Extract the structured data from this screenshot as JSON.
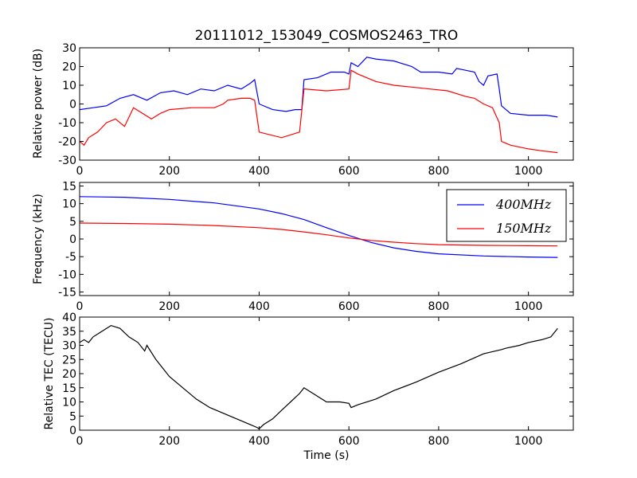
{
  "title": "20111012_153049_COSMOS2463_TRO",
  "chart_data": [
    {
      "type": "line",
      "ylabel": "Relative power (dB)",
      "xlabel": "",
      "xlim": [
        0,
        1100
      ],
      "ylim": [
        -30,
        30
      ],
      "xticks": [
        0,
        200,
        400,
        600,
        800,
        1000
      ],
      "yticks": [
        -30,
        -20,
        -10,
        0,
        10,
        20,
        30
      ],
      "grid": false,
      "series": [
        {
          "color": "#0000ff",
          "x": [
            0,
            30,
            60,
            90,
            120,
            150,
            180,
            210,
            240,
            270,
            300,
            330,
            360,
            380,
            390,
            400,
            430,
            460,
            480,
            495,
            500,
            530,
            560,
            590,
            600,
            605,
            620,
            640,
            660,
            700,
            740,
            760,
            800,
            830,
            840,
            860,
            880,
            890,
            900,
            910,
            930,
            935,
            940,
            960,
            1000,
            1040,
            1065
          ],
          "values": [
            -3,
            -2,
            -1,
            3,
            5,
            2,
            6,
            7,
            5,
            8,
            7,
            10,
            8,
            11,
            13,
            0,
            -3,
            -4,
            -3,
            -3,
            13,
            14,
            17,
            17,
            16,
            22,
            20,
            25,
            24,
            23,
            20,
            17,
            17,
            16,
            19,
            18,
            17,
            12,
            10,
            15,
            16,
            8,
            -1,
            -5,
            -6,
            -6,
            -7
          ]
        },
        {
          "color": "#ff0000",
          "x": [
            0,
            10,
            20,
            40,
            60,
            80,
            100,
            120,
            140,
            160,
            180,
            200,
            250,
            300,
            320,
            330,
            360,
            380,
            390,
            400,
            450,
            490,
            500,
            550,
            600,
            605,
            620,
            660,
            700,
            740,
            780,
            820,
            860,
            880,
            900,
            920,
            935,
            940,
            960,
            1000,
            1030,
            1065
          ],
          "values": [
            -20,
            -22,
            -18,
            -15,
            -10,
            -8,
            -12,
            -2,
            -5,
            -8,
            -5,
            -3,
            -2,
            -2,
            0,
            2,
            3,
            3,
            2,
            -15,
            -18,
            -15,
            8,
            7,
            8,
            18,
            16,
            12,
            10,
            9,
            8,
            7,
            4,
            3,
            0,
            -2,
            -10,
            -20,
            -22,
            -24,
            -25,
            -26
          ]
        }
      ]
    },
    {
      "type": "line",
      "ylabel": "Frequency (kHz)",
      "xlabel": "",
      "xlim": [
        0,
        1100
      ],
      "ylim": [
        -16,
        16
      ],
      "xticks": [
        0,
        200,
        400,
        600,
        800,
        1000
      ],
      "yticks": [
        -15,
        -10,
        -5,
        0,
        5,
        10,
        15
      ],
      "grid": false,
      "legend": {
        "placement": "upper-right"
      },
      "series": [
        {
          "name": "400MHz",
          "color": "#0000ff",
          "x": [
            0,
            100,
            200,
            300,
            400,
            450,
            500,
            550,
            600,
            650,
            700,
            750,
            800,
            900,
            1000,
            1065
          ],
          "values": [
            12,
            11.8,
            11.2,
            10.2,
            8.5,
            7.2,
            5.5,
            3.2,
            1.0,
            -1.0,
            -2.5,
            -3.5,
            -4.2,
            -4.8,
            -5.1,
            -5.2
          ]
        },
        {
          "name": "150MHz",
          "color": "#ff0000",
          "x": [
            0,
            100,
            200,
            300,
            400,
            450,
            500,
            550,
            600,
            650,
            700,
            750,
            800,
            900,
            1000,
            1065
          ],
          "values": [
            4.5,
            4.4,
            4.2,
            3.8,
            3.2,
            2.7,
            2.0,
            1.2,
            0.3,
            -0.4,
            -0.9,
            -1.3,
            -1.6,
            -1.8,
            -1.9,
            -1.95
          ]
        }
      ]
    },
    {
      "type": "line",
      "ylabel": "Relative TEC (TECU)",
      "xlabel": "Time (s)",
      "xlim": [
        0,
        1100
      ],
      "ylim": [
        0,
        40
      ],
      "xticks": [
        0,
        200,
        400,
        600,
        800,
        1000
      ],
      "yticks": [
        0,
        5,
        10,
        15,
        20,
        25,
        30,
        35,
        40
      ],
      "grid": false,
      "series": [
        {
          "color": "#000000",
          "x": [
            0,
            10,
            20,
            30,
            50,
            70,
            90,
            110,
            130,
            145,
            150,
            170,
            200,
            230,
            260,
            290,
            320,
            350,
            380,
            395,
            400,
            410,
            430,
            450,
            470,
            490,
            500,
            520,
            550,
            580,
            600,
            605,
            620,
            660,
            700,
            750,
            800,
            850,
            900,
            940,
            950,
            980,
            1000,
            1030,
            1050,
            1065
          ],
          "values": [
            31,
            32,
            31,
            33,
            35,
            37,
            36,
            33,
            31,
            28,
            30,
            25,
            19,
            15,
            11,
            8,
            6,
            4,
            2,
            1,
            0.5,
            2,
            4,
            7,
            10,
            13,
            15,
            13,
            10,
            10,
            9.5,
            8,
            9,
            11,
            14,
            17,
            20.5,
            23.5,
            27,
            28.5,
            29,
            30,
            31,
            32,
            33,
            36
          ]
        }
      ]
    }
  ]
}
